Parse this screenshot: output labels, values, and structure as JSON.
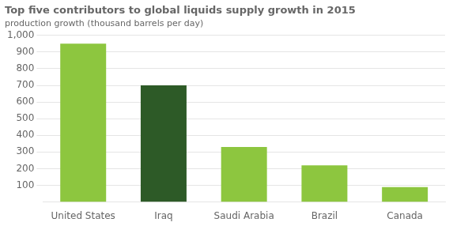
{
  "chart_data": {
    "type": "bar",
    "title": "Top five contributors to global liquids supply growth in 2015",
    "subtitle": "production growth (thousand barrels per day)",
    "categories": [
      "United States",
      "Iraq",
      "Saudi Arabia",
      "Brazil",
      "Canada"
    ],
    "values": [
      950,
      700,
      330,
      220,
      90
    ],
    "colors": [
      "#8dc63f",
      "#2d5a27",
      "#8dc63f",
      "#8dc63f",
      "#8dc63f"
    ],
    "ylim": [
      0,
      1000
    ],
    "yticks": [
      100,
      200,
      300,
      400,
      500,
      600,
      700,
      800,
      900,
      {
        "value": 1000,
        "label": "1,000"
      }
    ],
    "grid": true
  }
}
